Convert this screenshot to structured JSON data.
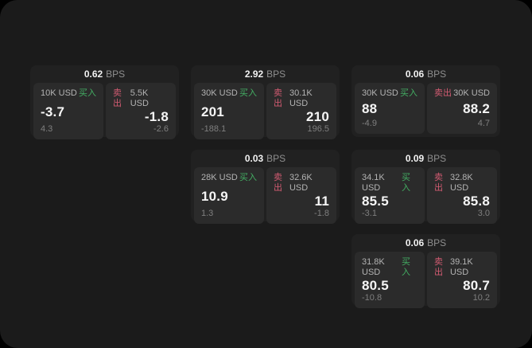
{
  "labels": {
    "buy": "买入",
    "sell": "卖出",
    "bps_suffix": "BPS"
  },
  "colors": {
    "page_bg": "#1b1b1b",
    "card_bg": "#212121",
    "panel_bg": "#2b2b2b",
    "buy_green": "#43ae63",
    "sell_red": "#d25b72",
    "value_white": "#f5f5f5",
    "muted_gray": "#7f7f7f"
  },
  "cards": [
    {
      "row": 1,
      "col": 1,
      "bps": "0.62",
      "buy": {
        "amount": "10K USD",
        "value": "-3.7",
        "sub": "4.3"
      },
      "sell": {
        "amount": "5.5K USD",
        "value": "-1.8",
        "sub": "-2.6"
      }
    },
    {
      "row": 1,
      "col": 2,
      "bps": "2.92",
      "buy": {
        "amount": "30K USD",
        "value": "201",
        "sub": "-188.1"
      },
      "sell": {
        "amount": "30.1K USD",
        "value": "210",
        "sub": "196.5"
      }
    },
    {
      "row": 1,
      "col": 3,
      "bps": "0.06",
      "buy": {
        "amount": "30K USD",
        "value": "88",
        "sub": "-4.9"
      },
      "sell": {
        "amount": "30K USD",
        "value": "88.2",
        "sub": "4.7"
      }
    },
    {
      "row": 2,
      "col": 2,
      "bps": "0.03",
      "buy": {
        "amount": "28K USD",
        "value": "10.9",
        "sub": "1.3"
      },
      "sell": {
        "amount": "32.6K USD",
        "value": "11",
        "sub": "-1.8"
      }
    },
    {
      "row": 2,
      "col": 3,
      "bps": "0.09",
      "buy": {
        "amount": "34.1K USD",
        "value": "85.5",
        "sub": "-3.1"
      },
      "sell": {
        "amount": "32.8K USD",
        "value": "85.8",
        "sub": "3.0"
      }
    },
    {
      "row": 3,
      "col": 3,
      "bps": "0.06",
      "buy": {
        "amount": "31.8K USD",
        "value": "80.5",
        "sub": "-10.8"
      },
      "sell": {
        "amount": "39.1K USD",
        "value": "80.7",
        "sub": "10.2"
      }
    }
  ]
}
